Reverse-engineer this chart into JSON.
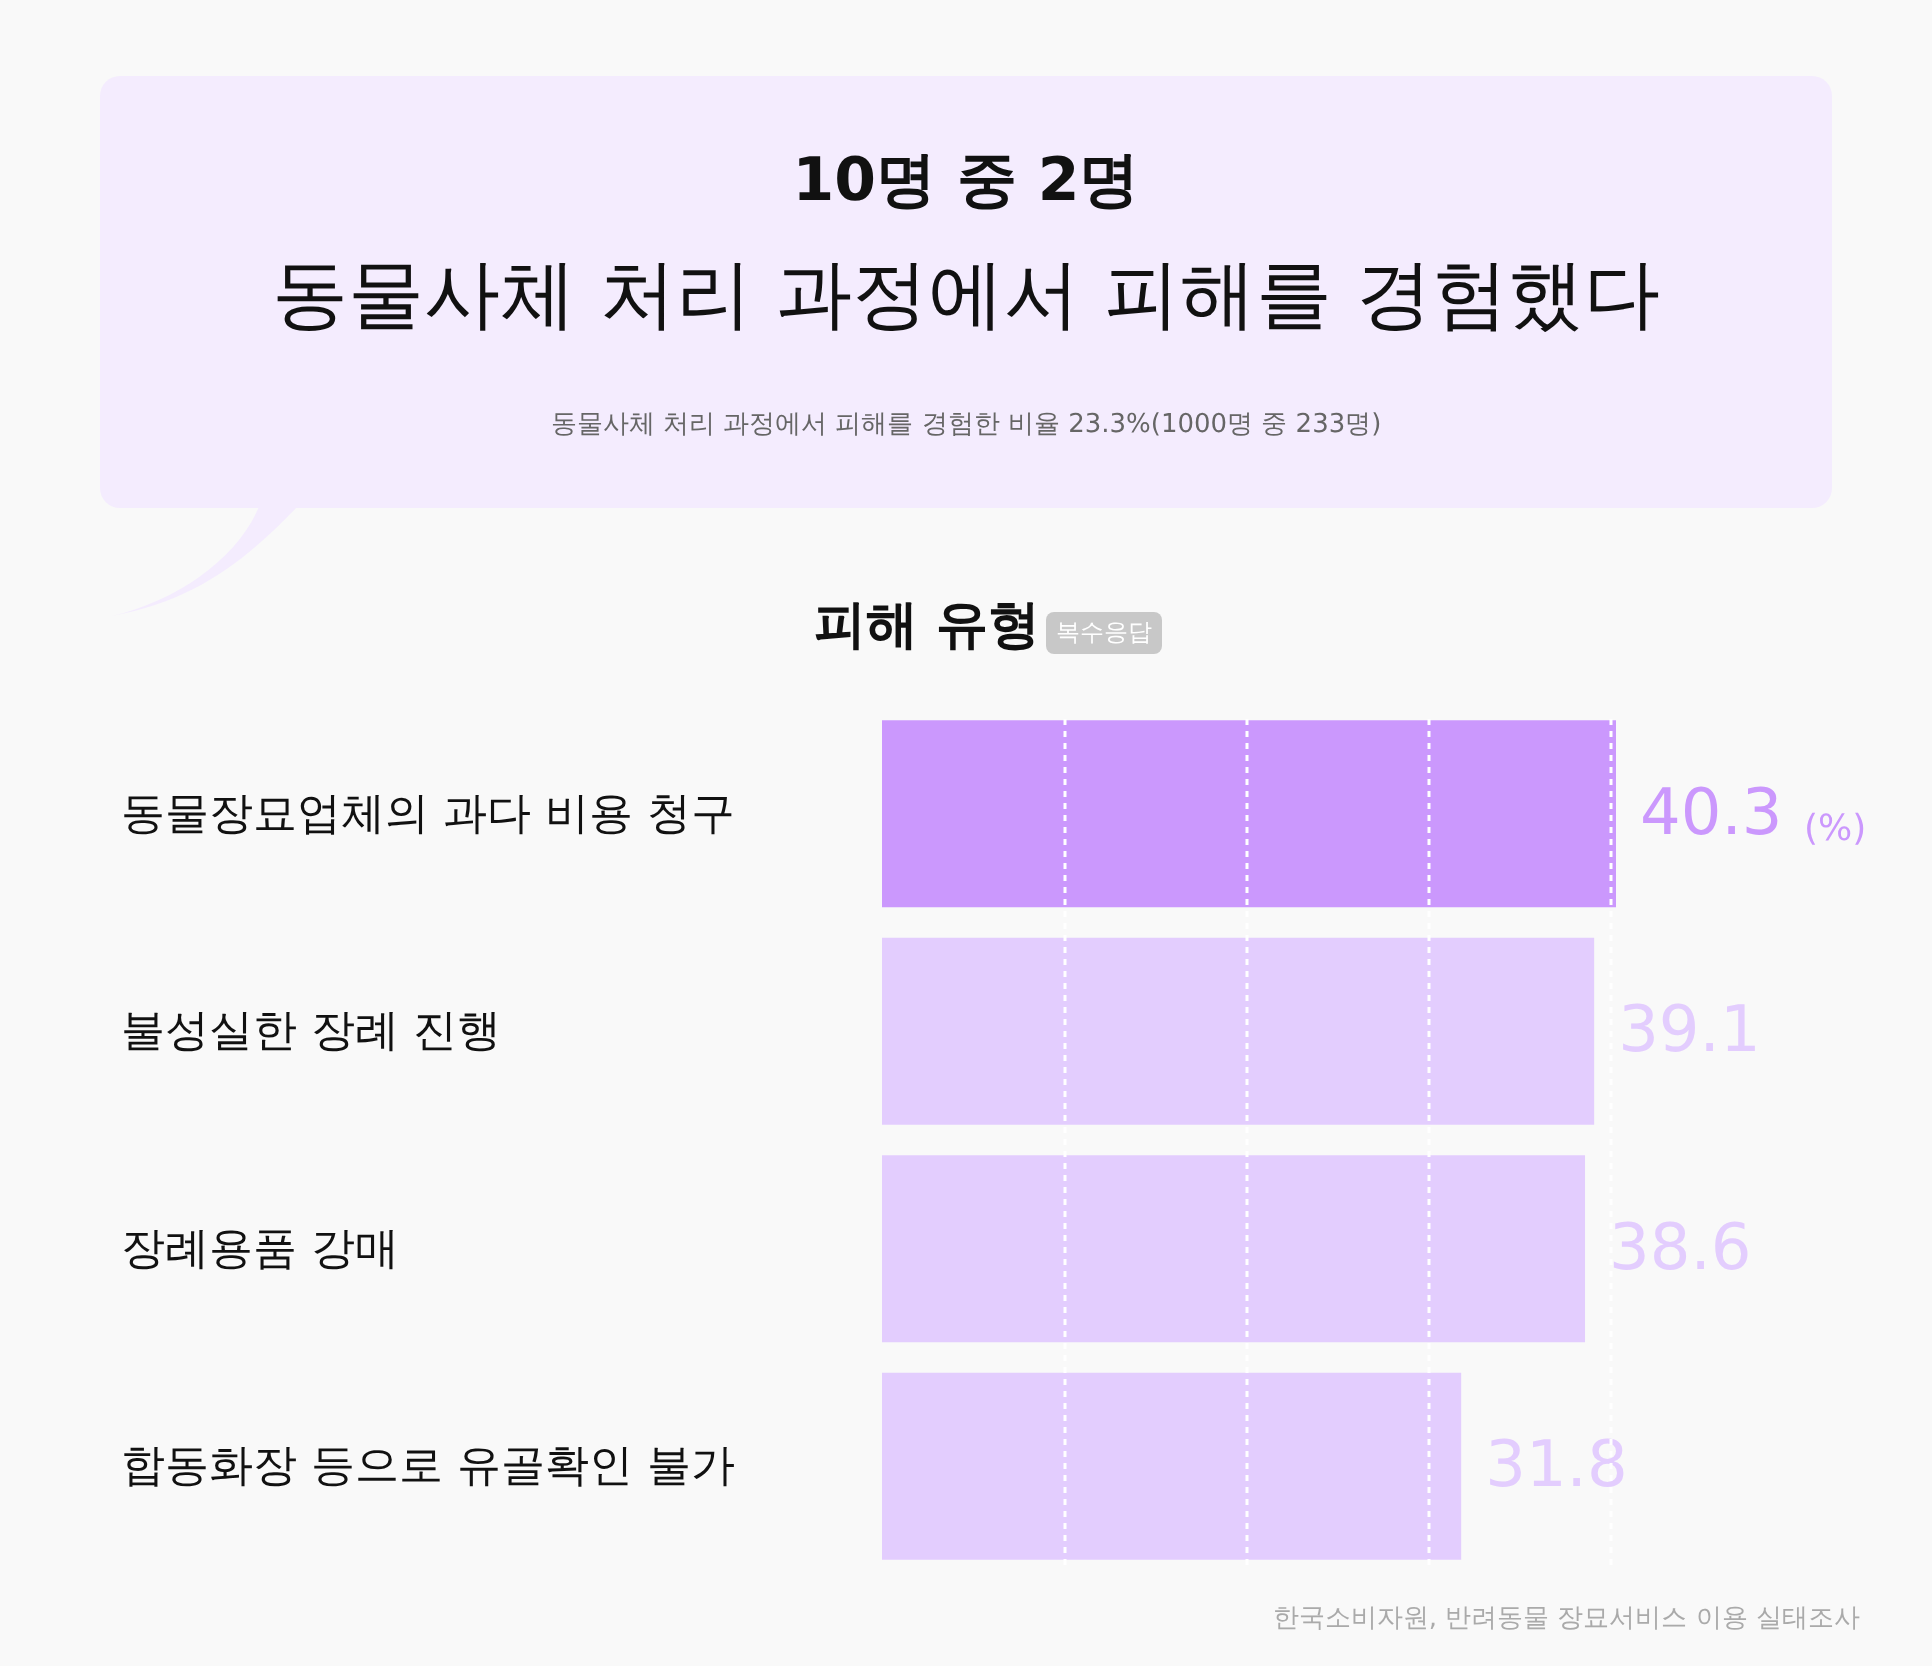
{
  "chart_data": {
    "type": "bar",
    "orientation": "horizontal",
    "title": "10명 중 2명",
    "subtitle": "동물사체 처리 과정에서 피해를 경험했다",
    "categories": [
      "동물장묘업체의 과다 비용 청구",
      "불성실한 장례 진행",
      "장례용품 강매",
      "합동화장 등으로 유골확인 불가"
    ],
    "values": [
      40.3,
      39.1,
      38.6,
      31.8
    ],
    "colors": [
      "#cb98fd",
      "#e3cdfe",
      "#e3cdfe",
      "#e3cdfe"
    ],
    "data_labels": true,
    "xticks": [
      {
        "value": 10,
        "label": null
      },
      {
        "value": 20,
        "label": null
      },
      {
        "value": 30,
        "label": null
      },
      {
        "value": 40,
        "label": null
      }
    ],
    "grid": "x",
    "tick_labels": "y",
    "annotations": [
      "동물사체 처리 과정에서 피해를 경험한 비율 23.3%(1000명 중 233명)",
      "피해 유형",
      "복수응답",
      "(%)",
      "한국소비자원, 반려동물 장묘서비스 이용 실태조사"
    ]
  }
}
